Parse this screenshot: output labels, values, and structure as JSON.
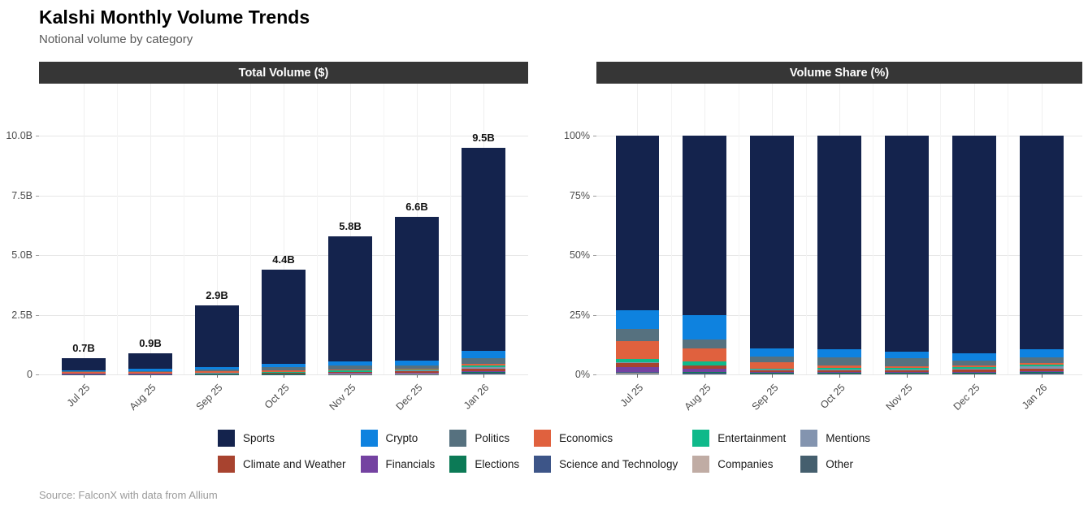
{
  "header": {
    "title": "Kalshi Monthly Volume Trends",
    "subtitle": "Notional volume by category"
  },
  "footer": {
    "source": "Source: FalconX with data from Allium"
  },
  "categories": [
    {
      "name": "Sports",
      "color": "#14234D"
    },
    {
      "name": "Crypto",
      "color": "#0E82DF"
    },
    {
      "name": "Politics",
      "color": "#56717F"
    },
    {
      "name": "Economics",
      "color": "#E0613E"
    },
    {
      "name": "Entertainment",
      "color": "#0FB98A"
    },
    {
      "name": "Mentions",
      "color": "#8394AF"
    },
    {
      "name": "Climate and Weather",
      "color": "#A8432F"
    },
    {
      "name": "Financials",
      "color": "#7442A1"
    },
    {
      "name": "Elections",
      "color": "#0C7A56"
    },
    {
      "name": "Science and Technology",
      "color": "#3D5588"
    },
    {
      "name": "Companies",
      "color": "#C0ACA4"
    },
    {
      "name": "Other",
      "color": "#455F6E"
    }
  ],
  "chart_data": [
    {
      "type": "bar",
      "stacked": true,
      "title": "Total Volume ($)",
      "unit": "billion USD",
      "categories": [
        "Jul 25",
        "Aug 25",
        "Sep 25",
        "Oct 25",
        "Nov 25",
        "Dec 25",
        "Jan 26"
      ],
      "totals": [
        0.7,
        0.9,
        2.9,
        4.4,
        5.8,
        6.6,
        9.5
      ],
      "bar_labels": [
        "0.7B",
        "0.9B",
        "2.9B",
        "4.4B",
        "5.8B",
        "6.6B",
        "9.5B"
      ],
      "ylim": [
        0,
        10
      ],
      "yticks": [
        {
          "label": "0",
          "value": 0
        },
        {
          "label": "2.5B",
          "value": 2.5
        },
        {
          "label": "5.0B",
          "value": 5
        },
        {
          "label": "7.5B",
          "value": 7.5
        },
        {
          "label": "10.0B",
          "value": 10
        }
      ],
      "grid": true,
      "series": [
        {
          "name": "Sports",
          "values": [
            0.511,
            0.675,
            2.581,
            3.938,
            5.249,
            6.006,
            8.503
          ]
        },
        {
          "name": "Crypto",
          "values": [
            0.056,
            0.095,
            0.102,
            0.145,
            0.162,
            0.205,
            0.314
          ]
        },
        {
          "name": "Politics",
          "values": [
            0.035,
            0.032,
            0.073,
            0.145,
            0.186,
            0.139,
            0.238
          ]
        },
        {
          "name": "Economics",
          "values": [
            0.053,
            0.05,
            0.073,
            0.053,
            0.041,
            0.04,
            0.057
          ]
        },
        {
          "name": "Entertainment",
          "values": [
            0.011,
            0.014,
            0.017,
            0.035,
            0.052,
            0.046,
            0.067
          ]
        },
        {
          "name": "Mentions",
          "values": [
            0.002,
            0.003,
            0.006,
            0.013,
            0.017,
            0.04,
            0.095
          ]
        },
        {
          "name": "Climate and Weather",
          "values": [
            0.011,
            0.01,
            0.015,
            0.022,
            0.029,
            0.059,
            0.095
          ]
        },
        {
          "name": "Financials",
          "values": [
            0.014,
            0.014,
            0.015,
            0.022,
            0.023,
            0.02,
            0.038
          ]
        },
        {
          "name": "Elections",
          "values": [
            0.001,
            0.002,
            0.006,
            0.009,
            0.017,
            0.013,
            0.019
          ]
        },
        {
          "name": "Science and Technology",
          "values": [
            0.002,
            0.002,
            0.006,
            0.004,
            0.006,
            0.013,
            0.048
          ]
        },
        {
          "name": "Companies",
          "values": [
            0.001,
            0.001,
            0.003,
            0.004,
            0.006,
            0.007,
            0.01
          ]
        },
        {
          "name": "Other",
          "values": [
            0.004,
            0.004,
            0.006,
            0.009,
            0.012,
            0.013,
            0.019
          ]
        }
      ]
    },
    {
      "type": "bar",
      "stacked": true,
      "percent": true,
      "title": "Volume Share (%)",
      "unit": "percent",
      "categories": [
        "Jul 25",
        "Aug 25",
        "Sep 25",
        "Oct 25",
        "Nov 25",
        "Dec 25",
        "Jan 26"
      ],
      "ylim": [
        0,
        100
      ],
      "yticks": [
        {
          "label": "0%",
          "value": 0
        },
        {
          "label": "25%",
          "value": 25
        },
        {
          "label": "50%",
          "value": 50
        },
        {
          "label": "75%",
          "value": 75
        },
        {
          "label": "100%",
          "value": 100
        }
      ],
      "grid": true,
      "series": [
        {
          "name": "Sports",
          "values": [
            73,
            75,
            89,
            89.5,
            90.5,
            91,
            89.5
          ]
        },
        {
          "name": "Crypto",
          "values": [
            8,
            10.5,
            3.5,
            3.3,
            2.8,
            3.1,
            3.3
          ]
        },
        {
          "name": "Politics",
          "values": [
            5,
            3.5,
            2.5,
            3.3,
            3.2,
            2.1,
            2.5
          ]
        },
        {
          "name": "Economics",
          "values": [
            7.5,
            5.5,
            2.5,
            1.2,
            0.7,
            0.6,
            0.6
          ]
        },
        {
          "name": "Entertainment",
          "values": [
            1.5,
            1.6,
            0.6,
            0.8,
            0.9,
            0.7,
            0.7
          ]
        },
        {
          "name": "Mentions",
          "values": [
            0.3,
            0.3,
            0.2,
            0.3,
            0.3,
            0.6,
            1.0
          ]
        },
        {
          "name": "Climate and Weather",
          "values": [
            1.5,
            1.1,
            0.5,
            0.5,
            0.5,
            0.9,
            1.0
          ]
        },
        {
          "name": "Financials",
          "values": [
            2,
            1.6,
            0.5,
            0.5,
            0.4,
            0.3,
            0.4
          ]
        },
        {
          "name": "Elections",
          "values": [
            0.2,
            0.2,
            0.2,
            0.2,
            0.3,
            0.2,
            0.2
          ]
        },
        {
          "name": "Science and Technology",
          "values": [
            0.3,
            0.2,
            0.2,
            0.1,
            0.1,
            0.2,
            0.5
          ]
        },
        {
          "name": "Companies",
          "values": [
            0.2,
            0.1,
            0.1,
            0.1,
            0.1,
            0.1,
            0.1
          ]
        },
        {
          "name": "Other",
          "values": [
            0.5,
            0.4,
            0.2,
            0.2,
            0.2,
            0.2,
            0.2
          ]
        }
      ]
    }
  ]
}
